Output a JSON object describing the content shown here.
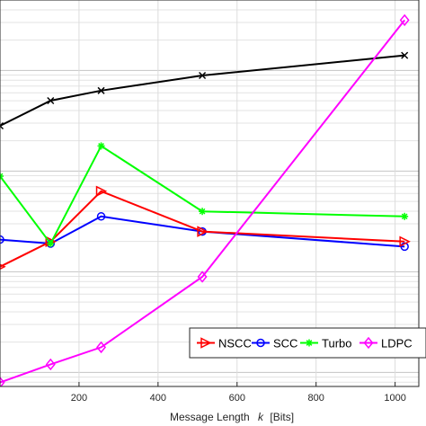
{
  "chart_data": {
    "type": "line",
    "title": "",
    "xlabel": "Message Length",
    "xlabel_var": "k",
    "xlabel_unit": "[Bits]",
    "xlim": [
      0,
      1060
    ],
    "x_ticks": [
      200,
      400,
      600,
      800,
      1000
    ],
    "y_scale": "log",
    "y_ticklabels_visible": false,
    "grid": true,
    "legend_position": "bottom-right",
    "series": [
      {
        "name": "NSCC",
        "color": "#ff0000",
        "marker": "triangle-right",
        "x": [
          0,
          128,
          256,
          512,
          1024
        ],
        "y": [
          2.05,
          2.3,
          2.8,
          2.4,
          2.3
        ]
      },
      {
        "name": "SCC",
        "color": "#0000ff",
        "marker": "circle",
        "x": [
          0,
          128,
          256,
          512,
          1024
        ],
        "y": [
          2.32,
          2.28,
          2.55,
          2.4,
          2.25
        ]
      },
      {
        "name": "Turbo",
        "color": "#00ff00",
        "marker": "asterisk",
        "x": [
          0,
          128,
          256,
          512,
          1024
        ],
        "y": [
          2.95,
          2.28,
          3.25,
          2.6,
          2.55
        ]
      },
      {
        "name": "LDPC",
        "color": "#ff00ff",
        "marker": "diamond",
        "x": [
          0,
          128,
          256,
          512,
          1024
        ],
        "y": [
          0.9,
          1.08,
          1.25,
          1.95,
          4.5
        ]
      },
      {
        "name": "",
        "color": "#000000",
        "marker": "x",
        "x": [
          0,
          128,
          256,
          512,
          1024
        ],
        "y": [
          3.45,
          3.7,
          3.8,
          3.95,
          4.15
        ]
      }
    ]
  }
}
